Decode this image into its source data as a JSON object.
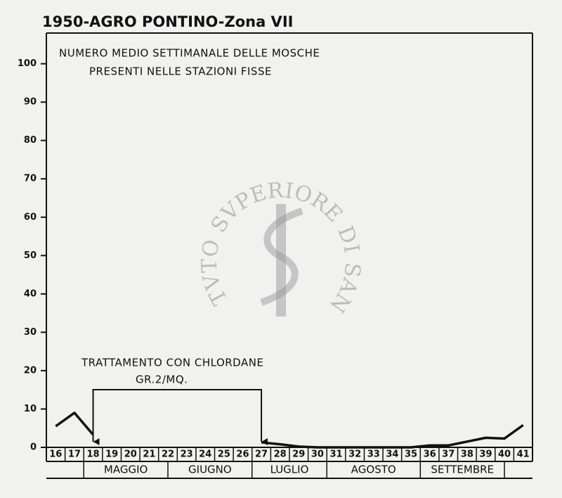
{
  "chart_data": {
    "type": "line",
    "title": "1950-AGRO PONTINO-Zona VII",
    "subtitle": [
      "NUMERO MEDIO SETTIMANALE DELLE MOSCHE",
      "PRESENTI NELLE STAZIONI FISSE"
    ],
    "annotation": [
      "TRATTAMENTO CON CHLORDANE",
      "GR.2/MQ."
    ],
    "watermark": "ISTITVTO SVPERIORE DI SANITA",
    "categories": [
      "16",
      "17",
      "18",
      "19",
      "20",
      "21",
      "22",
      "23",
      "24",
      "25",
      "26",
      "27",
      "28",
      "29",
      "30",
      "31",
      "32",
      "33",
      "34",
      "35",
      "36",
      "37",
      "38",
      "39",
      "40",
      "41"
    ],
    "month_labels": [
      "MAGGIO",
      "GIUGNO",
      "LUGLIO",
      "AGOSTO",
      "SETTEMBRE"
    ],
    "values": [
      5.5,
      9,
      3.3,
      null,
      null,
      null,
      null,
      null,
      null,
      null,
      null,
      1.3,
      0.8,
      0.2,
      0,
      0,
      0,
      0,
      0,
      0,
      0.5,
      0.5,
      1.5,
      2.5,
      2.3,
      5.8
    ],
    "color": "#111111",
    "ylim": [
      0,
      108
    ],
    "yticks": [
      0,
      10,
      20,
      30,
      40,
      50,
      60,
      70,
      80,
      90,
      100
    ]
  }
}
